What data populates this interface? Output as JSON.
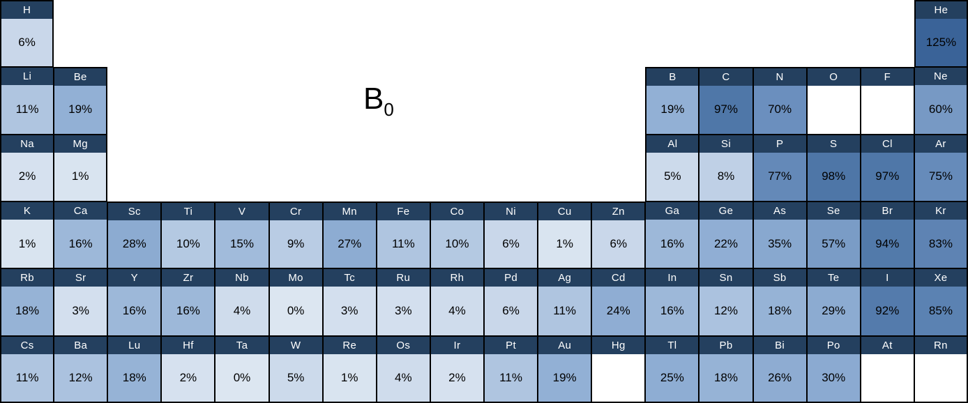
{
  "title": {
    "base": "B",
    "subscript": "0"
  },
  "colors": {
    "header_bg": "#24405F",
    "header_text": "#FFFFFF",
    "value_text": "#000000",
    "border": "#000000",
    "empty_bg": "#FFFFFF",
    "scale": [
      {
        "value": 0,
        "color": "#DCE6F1"
      },
      {
        "value": 6,
        "color": "#C9D7EA"
      },
      {
        "value": 11,
        "color": "#AFC5E0"
      },
      {
        "value": 19,
        "color": "#92B0D5"
      },
      {
        "value": 57,
        "color": "#7A9CC6"
      },
      {
        "value": 70,
        "color": "#6B8FBE"
      },
      {
        "value": 97,
        "color": "#4F77A8"
      },
      {
        "value": 125,
        "color": "#3A6398"
      }
    ]
  },
  "chart_data": {
    "type": "heatmap",
    "title": "B0 (periodic table heatmap of percentages)",
    "unit": "%",
    "value_range": [
      0,
      125
    ],
    "layout": "periodic-table 18 columns x 6 rows",
    "elements": [
      {
        "symbol": "H",
        "row": 1,
        "col": 1,
        "value": 6,
        "display": "6%"
      },
      {
        "symbol": "He",
        "row": 1,
        "col": 18,
        "value": 125,
        "display": "125%"
      },
      {
        "symbol": "Li",
        "row": 2,
        "col": 1,
        "value": 11,
        "display": "11%"
      },
      {
        "symbol": "Be",
        "row": 2,
        "col": 2,
        "value": 19,
        "display": "19%"
      },
      {
        "symbol": "B",
        "row": 2,
        "col": 13,
        "value": 19,
        "display": "19%"
      },
      {
        "symbol": "C",
        "row": 2,
        "col": 14,
        "value": 97,
        "display": "97%"
      },
      {
        "symbol": "N",
        "row": 2,
        "col": 15,
        "value": 70,
        "display": "70%"
      },
      {
        "symbol": "O",
        "row": 2,
        "col": 16,
        "value": null,
        "display": ""
      },
      {
        "symbol": "F",
        "row": 2,
        "col": 17,
        "value": null,
        "display": ""
      },
      {
        "symbol": "Ne",
        "row": 2,
        "col": 18,
        "value": 60,
        "display": "60%"
      },
      {
        "symbol": "Na",
        "row": 3,
        "col": 1,
        "value": 2,
        "display": "2%"
      },
      {
        "symbol": "Mg",
        "row": 3,
        "col": 2,
        "value": 1,
        "display": "1%"
      },
      {
        "symbol": "Al",
        "row": 3,
        "col": 13,
        "value": 5,
        "display": "5%"
      },
      {
        "symbol": "Si",
        "row": 3,
        "col": 14,
        "value": 8,
        "display": "8%"
      },
      {
        "symbol": "P",
        "row": 3,
        "col": 15,
        "value": 77,
        "display": "77%"
      },
      {
        "symbol": "S",
        "row": 3,
        "col": 16,
        "value": 98,
        "display": "98%"
      },
      {
        "symbol": "Cl",
        "row": 3,
        "col": 17,
        "value": 97,
        "display": "97%"
      },
      {
        "symbol": "Ar",
        "row": 3,
        "col": 18,
        "value": 75,
        "display": "75%"
      },
      {
        "symbol": "K",
        "row": 4,
        "col": 1,
        "value": 1,
        "display": "1%"
      },
      {
        "symbol": "Ca",
        "row": 4,
        "col": 2,
        "value": 16,
        "display": "16%"
      },
      {
        "symbol": "Sc",
        "row": 4,
        "col": 3,
        "value": 28,
        "display": "28%"
      },
      {
        "symbol": "Ti",
        "row": 4,
        "col": 4,
        "value": 10,
        "display": "10%"
      },
      {
        "symbol": "V",
        "row": 4,
        "col": 5,
        "value": 15,
        "display": "15%"
      },
      {
        "symbol": "Cr",
        "row": 4,
        "col": 6,
        "value": 9,
        "display": "9%"
      },
      {
        "symbol": "Mn",
        "row": 4,
        "col": 7,
        "value": 27,
        "display": "27%"
      },
      {
        "symbol": "Fe",
        "row": 4,
        "col": 8,
        "value": 11,
        "display": "11%"
      },
      {
        "symbol": "Co",
        "row": 4,
        "col": 9,
        "value": 10,
        "display": "10%"
      },
      {
        "symbol": "Ni",
        "row": 4,
        "col": 10,
        "value": 6,
        "display": "6%"
      },
      {
        "symbol": "Cu",
        "row": 4,
        "col": 11,
        "value": 1,
        "display": "1%"
      },
      {
        "symbol": "Zn",
        "row": 4,
        "col": 12,
        "value": 6,
        "display": "6%"
      },
      {
        "symbol": "Ga",
        "row": 4,
        "col": 13,
        "value": 16,
        "display": "16%"
      },
      {
        "symbol": "Ge",
        "row": 4,
        "col": 14,
        "value": 22,
        "display": "22%"
      },
      {
        "symbol": "As",
        "row": 4,
        "col": 15,
        "value": 35,
        "display": "35%"
      },
      {
        "symbol": "Se",
        "row": 4,
        "col": 16,
        "value": 57,
        "display": "57%"
      },
      {
        "symbol": "Br",
        "row": 4,
        "col": 17,
        "value": 94,
        "display": "94%"
      },
      {
        "symbol": "Kr",
        "row": 4,
        "col": 18,
        "value": 83,
        "display": "83%"
      },
      {
        "symbol": "Rb",
        "row": 5,
        "col": 1,
        "value": 18,
        "display": "18%"
      },
      {
        "symbol": "Sr",
        "row": 5,
        "col": 2,
        "value": 3,
        "display": "3%"
      },
      {
        "symbol": "Y",
        "row": 5,
        "col": 3,
        "value": 16,
        "display": "16%"
      },
      {
        "symbol": "Zr",
        "row": 5,
        "col": 4,
        "value": 16,
        "display": "16%"
      },
      {
        "symbol": "Nb",
        "row": 5,
        "col": 5,
        "value": 4,
        "display": "4%"
      },
      {
        "symbol": "Mo",
        "row": 5,
        "col": 6,
        "value": 0,
        "display": "0%"
      },
      {
        "symbol": "Tc",
        "row": 5,
        "col": 7,
        "value": 3,
        "display": "3%"
      },
      {
        "symbol": "Ru",
        "row": 5,
        "col": 8,
        "value": 3,
        "display": "3%"
      },
      {
        "symbol": "Rh",
        "row": 5,
        "col": 9,
        "value": 4,
        "display": "4%"
      },
      {
        "symbol": "Pd",
        "row": 5,
        "col": 10,
        "value": 6,
        "display": "6%"
      },
      {
        "symbol": "Ag",
        "row": 5,
        "col": 11,
        "value": 11,
        "display": "11%"
      },
      {
        "symbol": "Cd",
        "row": 5,
        "col": 12,
        "value": 24,
        "display": "24%"
      },
      {
        "symbol": "In",
        "row": 5,
        "col": 13,
        "value": 16,
        "display": "16%"
      },
      {
        "symbol": "Sn",
        "row": 5,
        "col": 14,
        "value": 12,
        "display": "12%"
      },
      {
        "symbol": "Sb",
        "row": 5,
        "col": 15,
        "value": 18,
        "display": "18%"
      },
      {
        "symbol": "Te",
        "row": 5,
        "col": 16,
        "value": 29,
        "display": "29%"
      },
      {
        "symbol": "I",
        "row": 5,
        "col": 17,
        "value": 92,
        "display": "92%"
      },
      {
        "symbol": "Xe",
        "row": 5,
        "col": 18,
        "value": 85,
        "display": "85%"
      },
      {
        "symbol": "Cs",
        "row": 6,
        "col": 1,
        "value": 11,
        "display": "11%"
      },
      {
        "symbol": "Ba",
        "row": 6,
        "col": 2,
        "value": 12,
        "display": "12%"
      },
      {
        "symbol": "Lu",
        "row": 6,
        "col": 3,
        "value": 18,
        "display": "18%"
      },
      {
        "symbol": "Hf",
        "row": 6,
        "col": 4,
        "value": 2,
        "display": "2%"
      },
      {
        "symbol": "Ta",
        "row": 6,
        "col": 5,
        "value": 0,
        "display": "0%"
      },
      {
        "symbol": "W",
        "row": 6,
        "col": 6,
        "value": 5,
        "display": "5%"
      },
      {
        "symbol": "Re",
        "row": 6,
        "col": 7,
        "value": 1,
        "display": "1%"
      },
      {
        "symbol": "Os",
        "row": 6,
        "col": 8,
        "value": 4,
        "display": "4%"
      },
      {
        "symbol": "Ir",
        "row": 6,
        "col": 9,
        "value": 2,
        "display": "2%"
      },
      {
        "symbol": "Pt",
        "row": 6,
        "col": 10,
        "value": 11,
        "display": "11%"
      },
      {
        "symbol": "Au",
        "row": 6,
        "col": 11,
        "value": 19,
        "display": "19%"
      },
      {
        "symbol": "Hg",
        "row": 6,
        "col": 12,
        "value": null,
        "display": ""
      },
      {
        "symbol": "Tl",
        "row": 6,
        "col": 13,
        "value": 25,
        "display": "25%"
      },
      {
        "symbol": "Pb",
        "row": 6,
        "col": 14,
        "value": 18,
        "display": "18%"
      },
      {
        "symbol": "Bi",
        "row": 6,
        "col": 15,
        "value": 26,
        "display": "26%"
      },
      {
        "symbol": "Po",
        "row": 6,
        "col": 16,
        "value": 30,
        "display": "30%"
      },
      {
        "symbol": "At",
        "row": 6,
        "col": 17,
        "value": null,
        "display": ""
      },
      {
        "symbol": "Rn",
        "row": 6,
        "col": 18,
        "value": null,
        "display": ""
      }
    ]
  }
}
